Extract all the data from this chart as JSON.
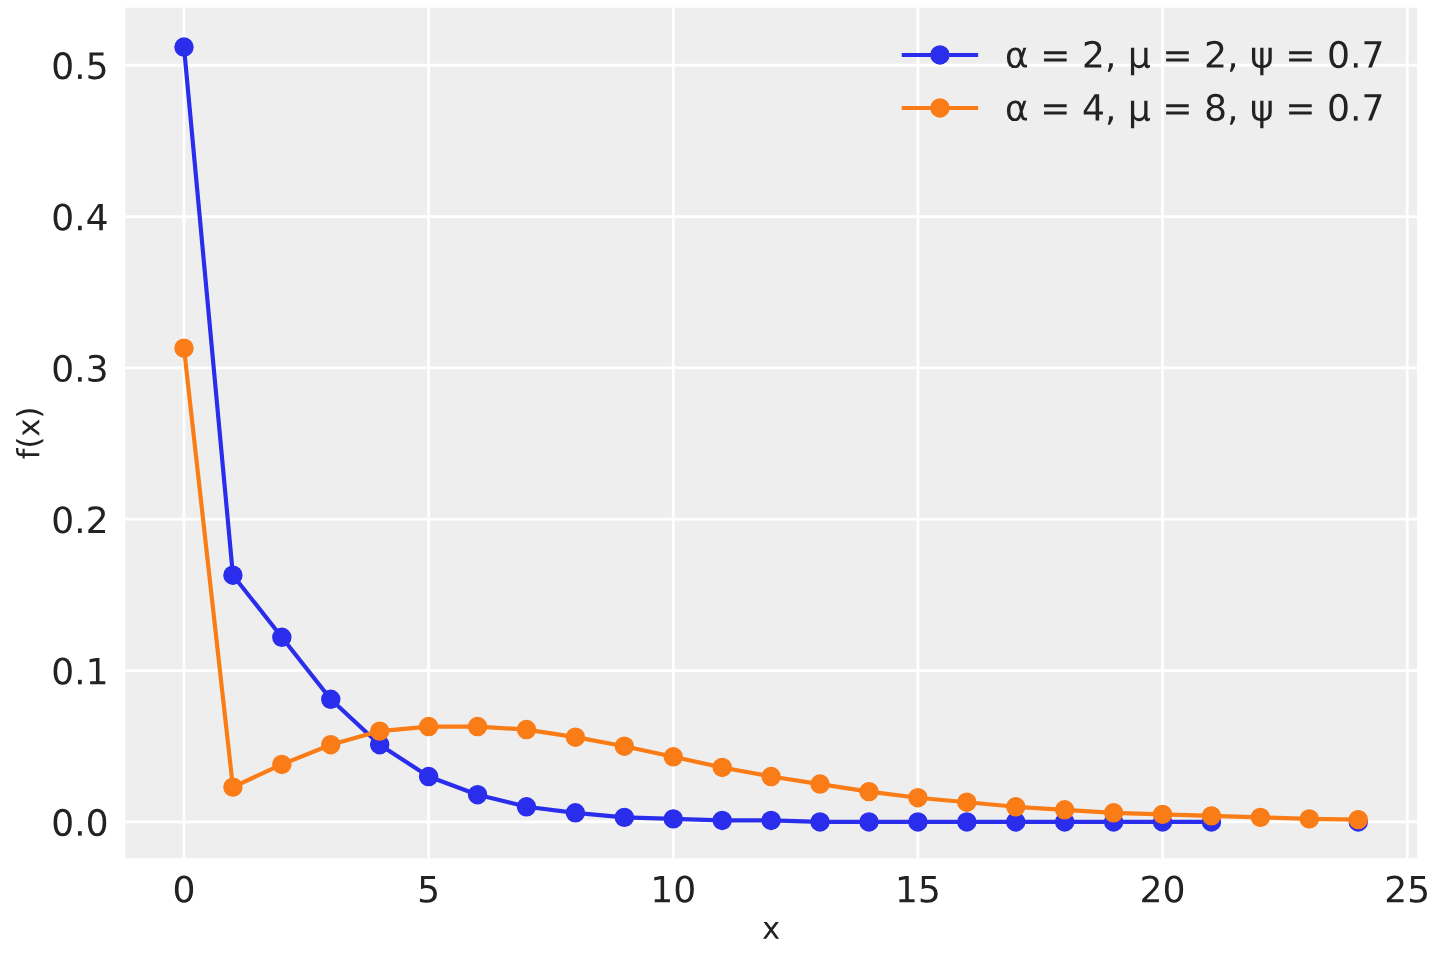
{
  "chart_data": {
    "type": "line",
    "xlabel": "x",
    "ylabel": "f(x)",
    "x": [
      0,
      1,
      2,
      3,
      4,
      5,
      6,
      7,
      8,
      9,
      10,
      11,
      12,
      13,
      14,
      15,
      16,
      17,
      18,
      19,
      20,
      21,
      22,
      23,
      24
    ],
    "series": [
      {
        "name": "α = 2, μ = 2, ψ = 0.7",
        "color": "#2a2eec",
        "values": [
          0.512,
          0.163,
          0.122,
          0.081,
          0.051,
          0.03,
          0.018,
          0.01,
          0.006,
          0.003,
          0.002,
          0.001,
          0.001,
          0,
          0,
          0,
          0,
          0,
          0,
          0,
          0,
          0,
          null,
          null,
          0
        ]
      },
      {
        "name": "α = 4, μ = 8, ψ = 0.7",
        "color": "#fa7c17",
        "values": [
          0.313,
          0.023,
          0.038,
          0.051,
          0.06,
          0.063,
          0.063,
          0.061,
          0.056,
          0.05,
          0.043,
          0.036,
          0.03,
          0.025,
          0.02,
          0.016,
          0.013,
          0.01,
          0.008,
          0.006,
          0.005,
          0.004,
          0.003,
          0.002,
          0.0015
        ]
      }
    ],
    "xlim": [
      -1.2,
      25.2
    ],
    "ylim": [
      -0.024,
      0.538
    ],
    "xticks": [
      0,
      5,
      10,
      15,
      20,
      25
    ],
    "yticks": [
      {
        "value": 0,
        "label": "0.0"
      },
      0.1,
      0.2,
      0.3,
      0.4,
      0.5
    ],
    "grid": true,
    "legend": "top right",
    "marker": "circle",
    "line_style": "solid"
  }
}
